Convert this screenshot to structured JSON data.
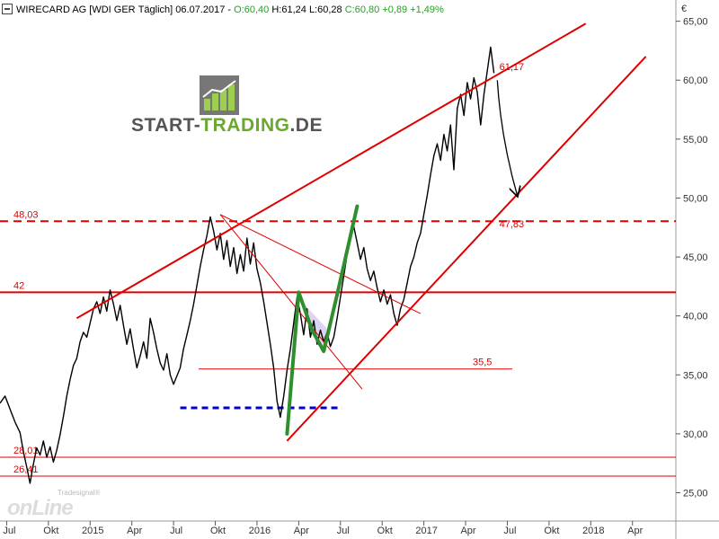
{
  "header": {
    "symbol": "WIRECARD AG [WDI GER",
    "period": "Täglich]",
    "date": "06.07.2017",
    "ohlc_prefix": "-",
    "open": "O:60,40",
    "high": "H:61,24",
    "low": "L:60,28",
    "close": "C:60,80",
    "change": "+0,89",
    "change_pct": "+1,49%"
  },
  "brand": {
    "part1": "START-",
    "part2": "TRADING",
    "part3": ".DE"
  },
  "watermark": {
    "line1": "Tradesignal®",
    "line2": "onLine"
  },
  "colors": {
    "price": "#000000",
    "trend": "#e00000",
    "green": "#2f8f2f",
    "blue": "#0000cc",
    "grid": "#cccccc"
  },
  "chart_data": {
    "type": "line",
    "y_unit_label": "€",
    "y_ticks": [
      25,
      30,
      35,
      40,
      45,
      50,
      55,
      60,
      65
    ],
    "y_tick_labels": [
      "25,00",
      "30,00",
      "35,00",
      "40,00",
      "45,00",
      "50,00",
      "55,00",
      "60,00",
      "65,00"
    ],
    "ylim": [
      22.6,
      66.8
    ],
    "xlim": [
      2014.46,
      2018.51
    ],
    "x_ticks": [
      {
        "label": "Jul",
        "t": 2014.5
      },
      {
        "label": "Okt",
        "t": 2014.75
      },
      {
        "label": "2015",
        "t": 2015.0
      },
      {
        "label": "Apr",
        "t": 2015.25
      },
      {
        "label": "Jul",
        "t": 2015.5
      },
      {
        "label": "Okt",
        "t": 2015.75
      },
      {
        "label": "2016",
        "t": 2016.0
      },
      {
        "label": "Apr",
        "t": 2016.25
      },
      {
        "label": "Jul",
        "t": 2016.5
      },
      {
        "label": "Okt",
        "t": 2016.75
      },
      {
        "label": "2017",
        "t": 2017.0
      },
      {
        "label": "Apr",
        "t": 2017.25
      },
      {
        "label": "Jul",
        "t": 2017.5
      },
      {
        "label": "Okt",
        "t": 2017.75
      },
      {
        "label": "2018",
        "t": 2018.0
      },
      {
        "label": "Apr",
        "t": 2018.25
      }
    ],
    "price_series": [
      [
        2014.46,
        32.6
      ],
      [
        2014.49,
        33.2
      ],
      [
        2014.52,
        32.1
      ],
      [
        2014.55,
        31.0
      ],
      [
        2014.58,
        30.1
      ],
      [
        2014.6,
        28.5
      ],
      [
        2014.62,
        27.2
      ],
      [
        2014.64,
        25.8
      ],
      [
        2014.66,
        27.4
      ],
      [
        2014.68,
        28.8
      ],
      [
        2014.7,
        28.2
      ],
      [
        2014.72,
        29.4
      ],
      [
        2014.74,
        28.0
      ],
      [
        2014.76,
        28.9
      ],
      [
        2014.78,
        27.6
      ],
      [
        2014.8,
        28.6
      ],
      [
        2014.82,
        29.9
      ],
      [
        2014.84,
        31.5
      ],
      [
        2014.86,
        33.2
      ],
      [
        2014.88,
        34.6
      ],
      [
        2014.9,
        35.8
      ],
      [
        2014.92,
        36.4
      ],
      [
        2014.94,
        37.8
      ],
      [
        2014.96,
        38.6
      ],
      [
        2014.98,
        38.2
      ],
      [
        2015.0,
        39.4
      ],
      [
        2015.02,
        40.6
      ],
      [
        2015.04,
        41.2
      ],
      [
        2015.06,
        40.2
      ],
      [
        2015.08,
        41.6
      ],
      [
        2015.1,
        40.4
      ],
      [
        2015.12,
        42.2
      ],
      [
        2015.14,
        41.0
      ],
      [
        2015.16,
        39.6
      ],
      [
        2015.18,
        40.9
      ],
      [
        2015.2,
        39.2
      ],
      [
        2015.22,
        37.6
      ],
      [
        2015.24,
        38.9
      ],
      [
        2015.26,
        37.2
      ],
      [
        2015.28,
        35.6
      ],
      [
        2015.3,
        36.6
      ],
      [
        2015.32,
        37.8
      ],
      [
        2015.34,
        36.4
      ],
      [
        2015.36,
        39.8
      ],
      [
        2015.38,
        38.6
      ],
      [
        2015.4,
        37.2
      ],
      [
        2015.42,
        36.0
      ],
      [
        2015.44,
        35.4
      ],
      [
        2015.46,
        36.8
      ],
      [
        2015.48,
        35.0
      ],
      [
        2015.5,
        34.2
      ],
      [
        2015.52,
        34.9
      ],
      [
        2015.54,
        35.6
      ],
      [
        2015.56,
        37.2
      ],
      [
        2015.58,
        38.4
      ],
      [
        2015.6,
        39.6
      ],
      [
        2015.62,
        41.0
      ],
      [
        2015.64,
        42.6
      ],
      [
        2015.66,
        44.2
      ],
      [
        2015.68,
        45.6
      ],
      [
        2015.7,
        46.8
      ],
      [
        2015.72,
        48.4
      ],
      [
        2015.74,
        47.2
      ],
      [
        2015.76,
        45.6
      ],
      [
        2015.78,
        47.0
      ],
      [
        2015.8,
        44.8
      ],
      [
        2015.82,
        46.4
      ],
      [
        2015.84,
        44.2
      ],
      [
        2015.86,
        45.8
      ],
      [
        2015.88,
        43.6
      ],
      [
        2015.9,
        45.2
      ],
      [
        2015.92,
        43.8
      ],
      [
        2015.94,
        46.6
      ],
      [
        2015.96,
        44.4
      ],
      [
        2015.98,
        46.2
      ],
      [
        2016.0,
        44.0
      ],
      [
        2016.02,
        42.8
      ],
      [
        2016.04,
        41.2
      ],
      [
        2016.06,
        39.4
      ],
      [
        2016.08,
        37.6
      ],
      [
        2016.1,
        35.6
      ],
      [
        2016.12,
        32.8
      ],
      [
        2016.14,
        31.4
      ],
      [
        2016.16,
        33.2
      ],
      [
        2016.18,
        35.4
      ],
      [
        2016.2,
        37.2
      ],
      [
        2016.22,
        39.4
      ],
      [
        2016.24,
        41.6
      ],
      [
        2016.26,
        40.2
      ],
      [
        2016.28,
        38.4
      ],
      [
        2016.3,
        40.6
      ],
      [
        2016.32,
        38.2
      ],
      [
        2016.34,
        39.6
      ],
      [
        2016.36,
        37.6
      ],
      [
        2016.38,
        38.8
      ],
      [
        2016.4,
        37.8
      ],
      [
        2016.42,
        38.6
      ],
      [
        2016.44,
        37.4
      ],
      [
        2016.46,
        38.2
      ],
      [
        2016.48,
        39.8
      ],
      [
        2016.5,
        41.6
      ],
      [
        2016.52,
        43.4
      ],
      [
        2016.54,
        45.2
      ],
      [
        2016.56,
        46.6
      ],
      [
        2016.58,
        47.6
      ],
      [
        2016.6,
        46.2
      ],
      [
        2016.62,
        44.8
      ],
      [
        2016.64,
        45.8
      ],
      [
        2016.66,
        44.0
      ],
      [
        2016.68,
        43.0
      ],
      [
        2016.7,
        43.8
      ],
      [
        2016.72,
        42.4
      ],
      [
        2016.74,
        41.2
      ],
      [
        2016.76,
        42.2
      ],
      [
        2016.78,
        41.0
      ],
      [
        2016.8,
        41.8
      ],
      [
        2016.82,
        40.2
      ],
      [
        2016.84,
        39.2
      ],
      [
        2016.86,
        40.6
      ],
      [
        2016.88,
        41.4
      ],
      [
        2016.9,
        42.8
      ],
      [
        2016.92,
        44.2
      ],
      [
        2016.94,
        45.0
      ],
      [
        2016.96,
        46.2
      ],
      [
        2016.98,
        47.0
      ],
      [
        2017.0,
        48.6
      ],
      [
        2017.02,
        50.2
      ],
      [
        2017.04,
        52.0
      ],
      [
        2017.06,
        53.6
      ],
      [
        2017.08,
        54.6
      ],
      [
        2017.1,
        53.2
      ],
      [
        2017.12,
        55.4
      ],
      [
        2017.14,
        54.0
      ],
      [
        2017.16,
        56.2
      ],
      [
        2017.18,
        52.4
      ],
      [
        2017.2,
        57.6
      ],
      [
        2017.22,
        58.8
      ],
      [
        2017.24,
        57.0
      ],
      [
        2017.26,
        59.8
      ],
      [
        2017.28,
        58.4
      ],
      [
        2017.3,
        60.2
      ],
      [
        2017.32,
        59.0
      ],
      [
        2017.34,
        56.2
      ],
      [
        2017.36,
        58.8
      ],
      [
        2017.38,
        60.8
      ],
      [
        2017.4,
        62.8
      ],
      [
        2017.42,
        60.6
      ]
    ],
    "hlines": [
      {
        "y": 48.03,
        "label": "48,03",
        "style": "dashed",
        "x0": 2014.46,
        "x1": 2018.51
      },
      {
        "y": 42,
        "label": "42",
        "style": "solid",
        "x0": 2014.46,
        "x1": 2018.51
      },
      {
        "y": 35.5,
        "label": "35,5",
        "style": "thin",
        "x0": 2015.65,
        "x1": 2017.53
      },
      {
        "y": 28.01,
        "label": "28,01",
        "style": "thin",
        "x0": 2014.46,
        "x1": 2018.51
      },
      {
        "y": 26.41,
        "label": "26,41",
        "style": "thin",
        "x0": 2014.46,
        "x1": 2018.51
      }
    ],
    "trendlines": [
      {
        "name": "upper-channel-line",
        "x0": 2014.92,
        "y0": 39.8,
        "x1": 2017.97,
        "y1": 64.8,
        "width": 2
      },
      {
        "name": "lower-channel-line",
        "x0": 2016.18,
        "y0": 29.4,
        "x1": 2018.33,
        "y1": 62.0,
        "width": 2
      },
      {
        "name": "descending-line-1",
        "x0": 2015.78,
        "y0": 48.6,
        "x1": 2016.98,
        "y1": 40.2,
        "width": 1
      },
      {
        "name": "descending-line-2",
        "x0": 2015.78,
        "y0": 48.6,
        "x1": 2016.63,
        "y1": 33.8,
        "width": 1
      }
    ],
    "support_dashed": {
      "y": 32.2,
      "x0": 2015.54,
      "x1": 2016.51
    },
    "green_path": [
      [
        2016.18,
        30.0
      ],
      [
        2016.25,
        42.0
      ],
      [
        2016.33,
        38.8
      ],
      [
        2016.4,
        37.0
      ],
      [
        2016.48,
        41.8
      ],
      [
        2016.6,
        49.3
      ]
    ],
    "annotations": [
      {
        "text": "61,17",
        "x": 2017.42,
        "y": 61.17
      },
      {
        "text": "47,83",
        "x": 2017.42,
        "y": 47.83
      }
    ],
    "arrow": {
      "x0": 2017.44,
      "y0": 60.0,
      "x1": 2017.56,
      "y1": 50.2
    }
  }
}
